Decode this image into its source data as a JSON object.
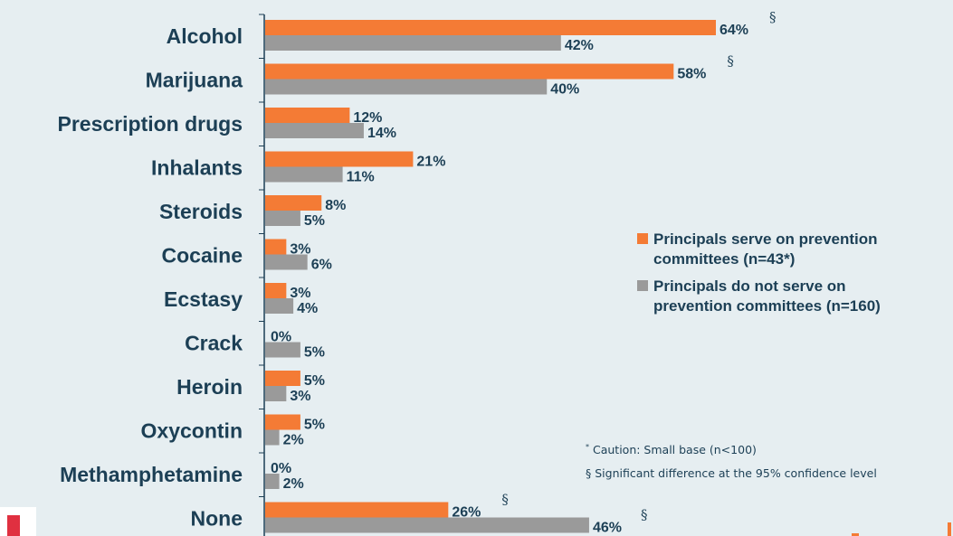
{
  "chart_data": {
    "type": "bar",
    "orientation": "horizontal",
    "categories": [
      "Alcohol",
      "Marijuana",
      "Prescription drugs",
      "Inhalants",
      "Steroids",
      "Cocaine",
      "Ecstasy",
      "Crack",
      "Heroin",
      "Oxycontin",
      "Methamphetamine",
      "None"
    ],
    "series": [
      {
        "name": "Principals serve on prevention committees (n=43*)",
        "color": "#f47b35",
        "values": [
          64,
          58,
          12,
          21,
          8,
          3,
          3,
          0,
          5,
          5,
          0,
          26
        ],
        "labels": [
          "64%",
          "58%",
          "12%",
          "21%",
          "8%",
          "3%",
          "3%",
          "0%",
          "5%",
          "5%",
          "0%",
          "26%"
        ]
      },
      {
        "name": "Principals do not serve on prevention committees (n=160)",
        "color": "#9a9a9a",
        "values": [
          42,
          40,
          14,
          11,
          5,
          6,
          4,
          5,
          3,
          2,
          2,
          46
        ],
        "labels": [
          "42%",
          "40%",
          "14%",
          "11%",
          "5%",
          "6%",
          "4%",
          "5%",
          "3%",
          "2%",
          "2%",
          "46%"
        ]
      }
    ],
    "significance_marker": "§",
    "significant_categories": [
      "Alcohol",
      "Marijuana",
      "None"
    ],
    "xlim": [
      0,
      100
    ],
    "grid": false,
    "legend_placement": "right"
  },
  "legend": {
    "items": [
      {
        "line1": "Principals serve on prevention",
        "line2": "committees (n=43*)",
        "color": "#f47b35"
      },
      {
        "line1": "Principals do not serve on",
        "line2": "prevention committees (n=160)",
        "color": "#9a9a9a"
      }
    ]
  },
  "notes": {
    "caution_mark": "*",
    "caution_text": "Caution:  Small base (n<100)",
    "significance_mark": "§",
    "significance_text": "Significant difference at the 95% confidence level"
  }
}
